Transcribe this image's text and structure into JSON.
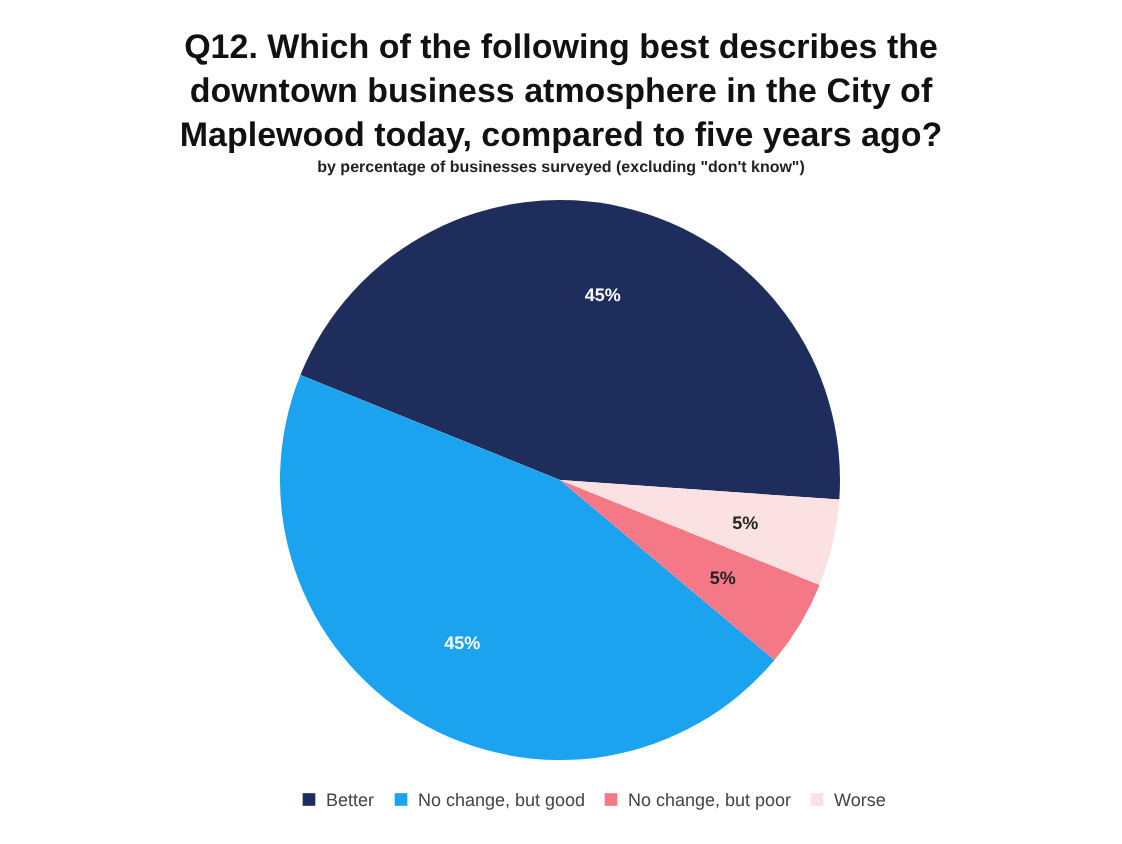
{
  "chart_data": {
    "type": "pie",
    "title": "Q12. Which of the following best describes the downtown business atmosphere in the City of Maplewood today, compared to five years ago?",
    "subtitle": "by percentage of businesses surveyed (excluding \"don't know\")",
    "categories": [
      "Better",
      "No change, but good",
      "No change, but poor",
      "Worse"
    ],
    "values": [
      45,
      45,
      5,
      5
    ],
    "colors": [
      "#1e2d5c",
      "#1ba3f0",
      "#f47886",
      "#fbe1e1"
    ],
    "value_labels": [
      "45%",
      "45%",
      "5%",
      "5%"
    ],
    "legend": "bottom"
  }
}
